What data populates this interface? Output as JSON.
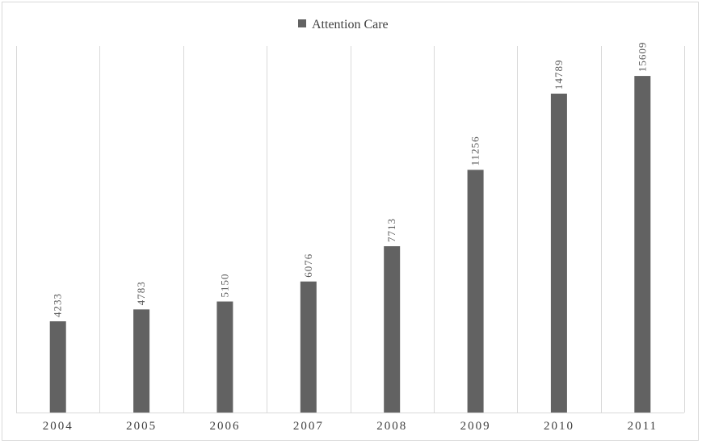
{
  "chart_data": {
    "type": "bar",
    "categories": [
      "2004",
      "2005",
      "2006",
      "2007",
      "2008",
      "2009",
      "2010",
      "2011"
    ],
    "series": [
      {
        "name": "Attention Care",
        "values": [
          4233,
          4783,
          5150,
          6076,
          7713,
          11256,
          14789,
          15609
        ]
      }
    ],
    "ylim": [
      0,
      17000
    ],
    "grid": "vertical",
    "legend": "top-center",
    "data_labels": "rotated-vertical",
    "colors": {
      "bar": "#626262",
      "grid": "#d9d9d9",
      "text": "#404040"
    }
  }
}
